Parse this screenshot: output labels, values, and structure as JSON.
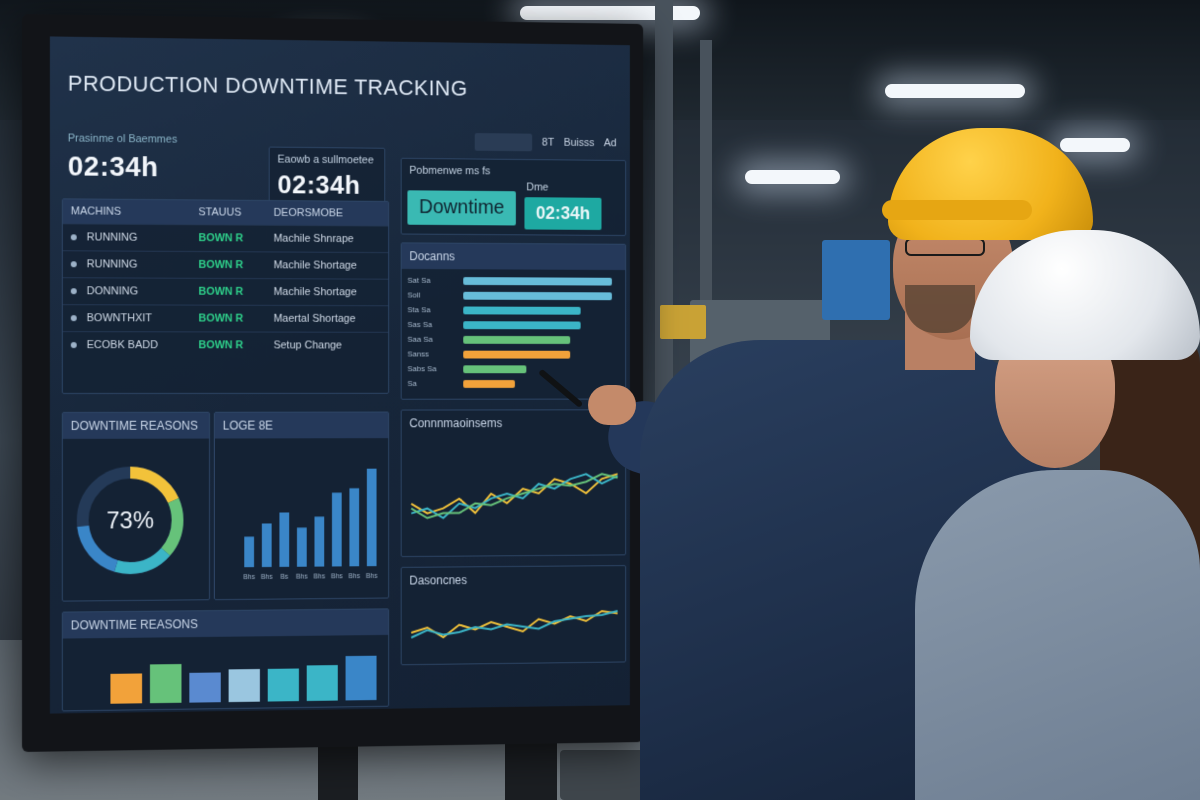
{
  "dashboard": {
    "title": "PRODUCTION DOWNTIME TRACKING",
    "kpi_left": {
      "label": "Prasinme ol Baemmes",
      "value": "02:34h"
    },
    "kpi_mid": {
      "label": "Eaowb a sullmoetee",
      "value": "02:34h"
    },
    "kpi_right": {
      "label": "Pobmenwe ms fs",
      "status": "Downtime",
      "sublabel": "Dme",
      "value": "02:34h"
    },
    "top_icons": [
      "8T",
      "Buisss",
      "Ad"
    ],
    "machines_table": {
      "columns": [
        "MACHINS",
        "STAUUS",
        "DEORSMOBE"
      ],
      "rows": [
        {
          "machine": "RUNNING",
          "status": "BOWN R",
          "reason": "Machile Shnrape"
        },
        {
          "machine": "RUNNING",
          "status": "BOWN R",
          "reason": "Machile Shortage"
        },
        {
          "machine": "DONNING",
          "status": "BOWN R",
          "reason": "Machile Shortage"
        },
        {
          "machine": "BOWNTHXIT",
          "status": "BOWN R",
          "reason": "Maertal Shortage"
        },
        {
          "machine": "ECOBK BADD",
          "status": "BOWN R",
          "reason": "Setup Change"
        }
      ]
    },
    "bars_panel": {
      "title": "Docanns",
      "rows": [
        {
          "label": "Sat Sa",
          "value": 0.95,
          "color": "#67bcd9"
        },
        {
          "label": "Soll",
          "value": 0.95,
          "color": "#67bcd9"
        },
        {
          "label": "Sta Sa",
          "value": 0.75,
          "color": "#3bb5c7"
        },
        {
          "label": "Sas Sa",
          "value": 0.75,
          "color": "#3bb5c7"
        },
        {
          "label": "Saa Sa",
          "value": 0.68,
          "color": "#66c27a"
        },
        {
          "label": "Sanss",
          "value": 0.68,
          "color": "#f2a23a"
        },
        {
          "label": "Sabs Sa",
          "value": 0.4,
          "color": "#66c27a"
        },
        {
          "label": "Sa",
          "value": 0.33,
          "color": "#f2a23a"
        }
      ]
    },
    "donut_panel": {
      "title": "DOWNTIME REASONS",
      "value": "73%",
      "percent": 73
    },
    "col_chart": {
      "title": "LOGE 8E",
      "values": [
        28,
        40,
        50,
        36,
        46,
        68,
        72,
        90
      ],
      "x_labels": [
        "Bhs",
        "Bhs",
        "Bs",
        "Bhs",
        "Bhs",
        "Bhs",
        "Bhs",
        "Bhs"
      ]
    },
    "line_chart_1": {
      "title": "Connnmaoinsems"
    },
    "line_chart_2": {
      "title": "Dasoncnes"
    },
    "bottom_panel": {
      "title": "DOWNTIME REASONS",
      "bars": [
        {
          "value": 0.5,
          "color": "#f2a23a"
        },
        {
          "value": 0.65,
          "color": "#66c27a"
        },
        {
          "value": 0.5,
          "color": "#5a8ad0"
        },
        {
          "value": 0.55,
          "color": "#9ac6e0"
        },
        {
          "value": 0.55,
          "color": "#3bb5c7"
        },
        {
          "value": 0.6,
          "color": "#3bb5c7"
        },
        {
          "value": 0.75,
          "color": "#3a86c8"
        }
      ]
    }
  }
}
